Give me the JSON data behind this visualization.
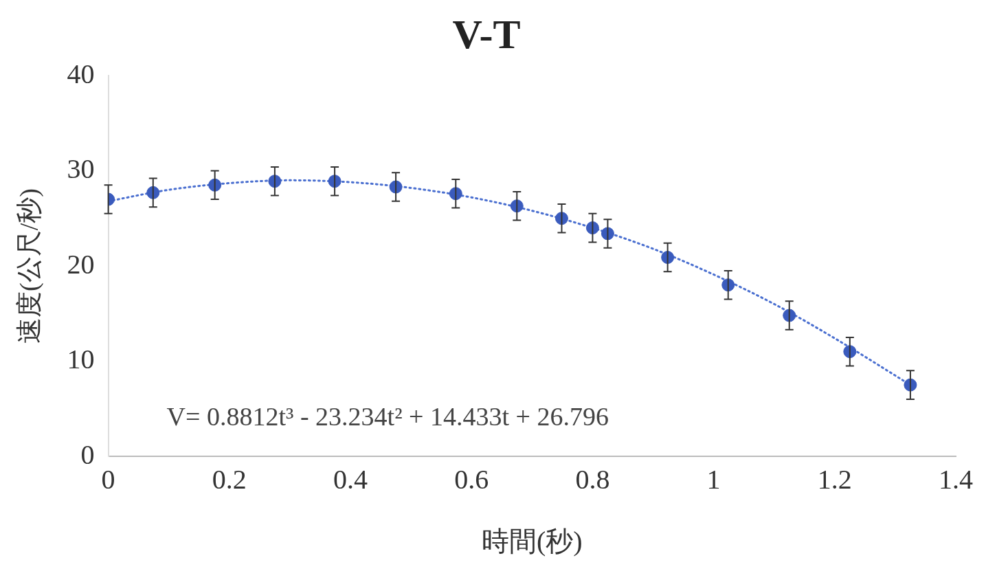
{
  "chart_data": {
    "type": "scatter",
    "title": "V-T",
    "xlabel": "時間(秒)",
    "ylabel": "速度(公尺/秒)",
    "xlim": [
      0,
      1.4
    ],
    "xticks": [
      0,
      0.2,
      0.4,
      0.6,
      0.8,
      1,
      1.2,
      1.4
    ],
    "ylim": [
      0,
      40
    ],
    "yticks": [
      0,
      10,
      20,
      30,
      40
    ],
    "grid": false,
    "legend": false,
    "marker": "circle",
    "series": [
      {
        "color": "#3a5bbd",
        "x": [
          0,
          0.074,
          0.176,
          0.275,
          0.374,
          0.475,
          0.574,
          0.675,
          0.749,
          0.8,
          0.825,
          0.924,
          1.024,
          1.125,
          1.225,
          1.325
        ],
        "values": [
          27.0,
          27.7,
          28.5,
          28.9,
          28.9,
          28.3,
          27.6,
          26.3,
          25.0,
          24.0,
          23.4,
          20.9,
          18.0,
          14.8,
          11.0,
          7.5
        ],
        "errors": [
          1.5,
          1.5,
          1.5,
          1.5,
          1.5,
          1.5,
          1.5,
          1.5,
          1.5,
          1.5,
          1.5,
          1.5,
          1.5,
          1.5,
          1.5,
          1.5
        ]
      },
      {
        "type": "line",
        "color": "#4a6fd0",
        "marker": "none",
        "line_style": "dotted",
        "x": [
          0,
          0.1,
          0.2,
          0.3,
          0.4,
          0.5,
          0.6,
          0.7,
          0.8,
          0.9,
          1.0,
          1.1,
          1.2,
          1.325
        ],
        "values": [
          26.8,
          28.0,
          28.7,
          29.0,
          28.8,
          28.2,
          27.2,
          25.8,
          24.0,
          21.8,
          19.1,
          16.0,
          12.4,
          7.5
        ]
      }
    ],
    "annotations": [
      "V= 0.8812t³ - 23.234t² + 14.433t + 26.796"
    ]
  }
}
